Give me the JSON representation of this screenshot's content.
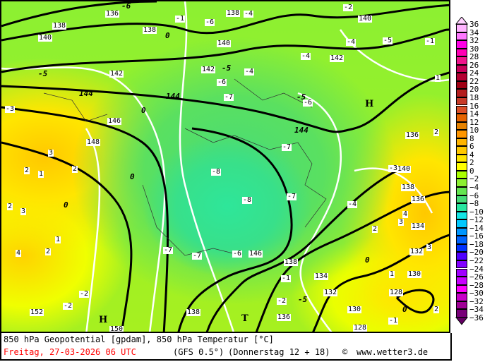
{
  "map": {
    "title": "850 hPa Geopotential [gpdam], 850 hPa Temperatur [°C]",
    "date": "Freitag, 27-03-2026  06 UTC",
    "model": "(GFS 0.5°)",
    "run": "(Donnerstag 12 + 18)",
    "copyright_symbol": "©",
    "site": "www.wetter3.de",
    "accent_color": "#ff0000",
    "geopotential_labels": [
      "136",
      "138",
      "138",
      "140",
      "140",
      "142",
      "142",
      "144",
      "144",
      "146",
      "148",
      "138",
      "140",
      "142",
      "144",
      "146",
      "138",
      "134",
      "132",
      "130",
      "128",
      "136",
      "132",
      "134",
      "136",
      "138",
      "140",
      "128",
      "130",
      "136",
      "150",
      "152",
      "138"
    ],
    "temperature_labels": [
      "-6",
      "-1",
      "-6",
      "-4",
      "-2",
      "-1",
      "-4",
      "-4",
      "-5",
      "-5",
      "-5",
      "-4",
      "-6",
      "-7",
      "-5",
      "-6",
      "-8",
      "-7",
      "-8",
      "-7",
      "-4",
      "-6",
      "-7",
      "-7",
      "-2",
      "-1",
      "-3",
      "-5",
      "-2",
      "-2",
      "-3",
      "-1",
      "1",
      "2",
      "3",
      "2",
      "1",
      "2",
      "4",
      "2",
      "2",
      "3",
      "1",
      "2",
      "3",
      "1",
      "2",
      "3",
      "4"
    ],
    "zero_isotherm_label": "0",
    "high_labels": [
      "H",
      "H"
    ],
    "low_labels": [
      "T"
    ]
  },
  "legend": {
    "labels": [
      "36",
      "34",
      "32",
      "30",
      "28",
      "26",
      "24",
      "22",
      "20",
      "18",
      "16",
      "14",
      "12",
      "10",
      "8",
      "6",
      "4",
      "2",
      "0",
      "−2",
      "−4",
      "−6",
      "−8",
      "−10",
      "−12",
      "−14",
      "−16",
      "−18",
      "−20",
      "−22",
      "−24",
      "−26",
      "−28",
      "−30",
      "−32",
      "−34",
      "−36"
    ],
    "colors": [
      "#ffb4ff",
      "#ff78ff",
      "#ff00e6",
      "#ff00b4",
      "#f0148c",
      "#c8005a",
      "#b40032",
      "#a00014",
      "#b41e1e",
      "#c83c28",
      "#dc5028",
      "#e66400",
      "#e68200",
      "#ff9600",
      "#ffb400",
      "#ffc800",
      "#ffe600",
      "#ffff00",
      "#aaff00",
      "#8cf032",
      "#64e650",
      "#46dc78",
      "#28e6a0",
      "#14e6e6",
      "#00c8ff",
      "#0096ff",
      "#0064ff",
      "#0032ff",
      "#5000ff",
      "#8200ff",
      "#a000ff",
      "#c800ff",
      "#ff00ff",
      "#c800c8",
      "#a00096",
      "#780078"
    ],
    "top_arrow_color": "#ffd2ff",
    "bottom_arrow_color": "#640064"
  }
}
